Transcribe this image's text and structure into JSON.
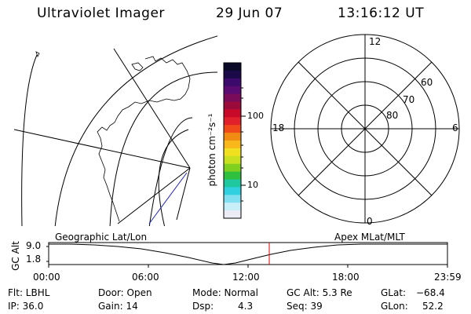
{
  "header": {
    "title": "Ultraviolet Imager",
    "date": "29 Jun 07",
    "time": "13:16:12 UT"
  },
  "colorbar": {
    "unit_label": "photon cm⁻²s⁻¹",
    "ticks": [
      "100",
      "10"
    ],
    "colors": [
      "#0a0a28",
      "#1a0a4a",
      "#3b0a6a",
      "#5a0a70",
      "#7a0a5a",
      "#9a0a3a",
      "#c80a28",
      "#e0202a",
      "#f04a1a",
      "#f08c14",
      "#f8b81c",
      "#f0e020",
      "#c8e020",
      "#80d020",
      "#30c040",
      "#20c8a0",
      "#30d0e0",
      "#80e0f0",
      "#c8eef8",
      "#ececf4"
    ]
  },
  "polar_plot": {
    "clock_labels": [
      "12",
      "18",
      "6",
      "0"
    ],
    "lat_labels": [
      "60",
      "70",
      "80"
    ]
  },
  "timeline": {
    "left_label": "Geographic Lat/Lon",
    "right_label": "Apex MLat/MLT",
    "y_axis_title": "GC Alt",
    "y_ticks": [
      "9.0",
      "1.8"
    ],
    "x_ticks": [
      "00:00",
      "06:00",
      "12:00",
      "18:00",
      "23:59"
    ],
    "marker_color": "#e00000"
  },
  "status": {
    "filter": "Flt: LBHL",
    "ip": "IP: 36.0",
    "door": "Door: Open",
    "gain": "Gain: 14",
    "mode": "Mode: Normal",
    "dsp_label": "Dsp:",
    "dsp_value": "4.3",
    "gc_alt": "GC Alt: 5.3 Re",
    "seq": "Seq: 39",
    "glat_label": "GLat:",
    "glat_value": "−68.4",
    "glon_label": "GLon:",
    "glon_value": "52.2"
  }
}
